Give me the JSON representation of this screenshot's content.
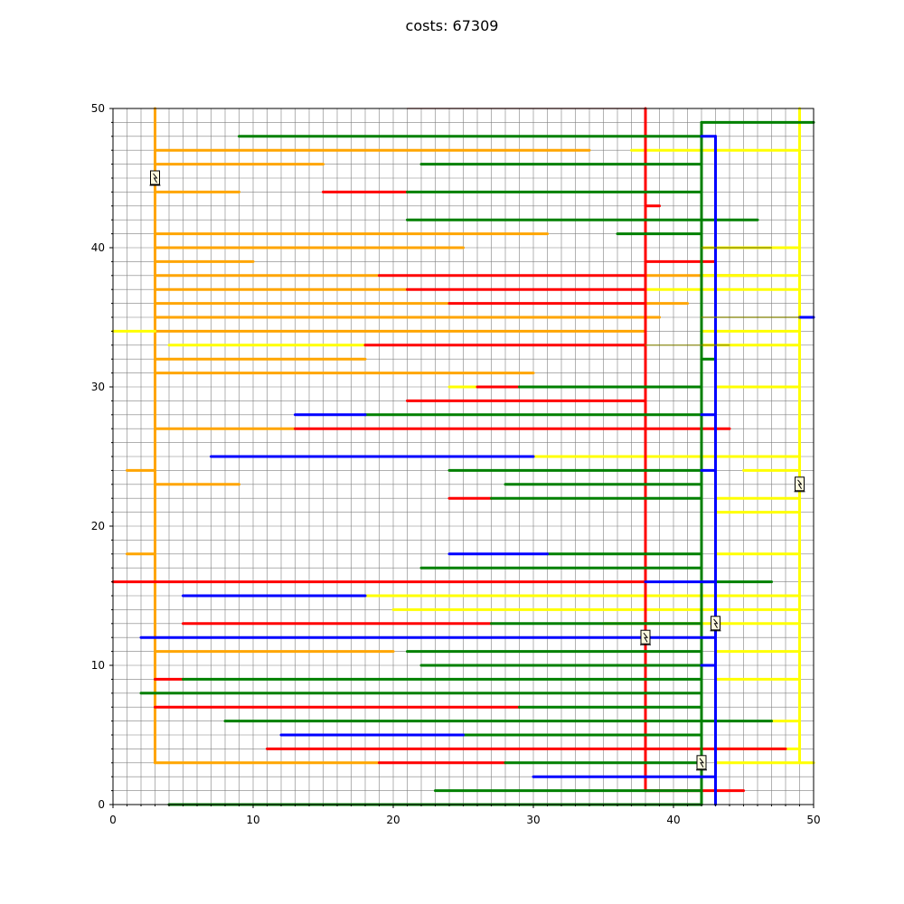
{
  "chart_data": {
    "type": "line",
    "title": "costs: 67309",
    "xlabel": "",
    "ylabel": "",
    "xlim": [
      0,
      50
    ],
    "ylim": [
      0,
      50
    ],
    "xticks": [
      "0",
      "10",
      "20",
      "30",
      "40",
      "50"
    ],
    "yticks": [
      "0",
      "10",
      "20",
      "30",
      "40",
      "50"
    ],
    "grid": "on",
    "grid_step": 1,
    "colors": {
      "orange": "#ffa500",
      "yellow": "#ffff00",
      "red": "#ff0000",
      "green": "#008000",
      "blue": "#0000ff",
      "dark": "#8b0000",
      "olive": "#808000",
      "grid": "#808080"
    },
    "markers": [
      {
        "name": "transformer-icon",
        "x": 3,
        "y": 45
      },
      {
        "name": "transformer-icon",
        "x": 38,
        "y": 12
      },
      {
        "name": "transformer-icon",
        "x": 43,
        "y": 13
      },
      {
        "name": "transformer-icon",
        "x": 42,
        "y": 3
      },
      {
        "name": "transformer-icon",
        "x": 49,
        "y": 23
      }
    ],
    "series": [
      {
        "color": "orange",
        "segments": [
          [
            3,
            3,
            3,
            50
          ],
          [
            3,
            3,
            19,
            3
          ],
          [
            3,
            47,
            34,
            47
          ],
          [
            3,
            46,
            15,
            46
          ],
          [
            3,
            44,
            9,
            44
          ],
          [
            3,
            41,
            31,
            41
          ],
          [
            3,
            40,
            25,
            40
          ],
          [
            3,
            39,
            10,
            39
          ],
          [
            3,
            38,
            19,
            38
          ],
          [
            3,
            37,
            21,
            37
          ],
          [
            3,
            36,
            24,
            36
          ],
          [
            3,
            35,
            38,
            35
          ],
          [
            3,
            34,
            38,
            34
          ],
          [
            3,
            32,
            18,
            32
          ],
          [
            3,
            31,
            30,
            31
          ],
          [
            3,
            27,
            13,
            27
          ],
          [
            3,
            23,
            9,
            23
          ],
          [
            1,
            24,
            3,
            24
          ],
          [
            1,
            18,
            3,
            18
          ],
          [
            3,
            11,
            20,
            11
          ],
          [
            38,
            38,
            46,
            38
          ],
          [
            38,
            36,
            41,
            36
          ],
          [
            38,
            35,
            39,
            35
          ]
        ]
      },
      {
        "color": "yellow",
        "segments": [
          [
            49,
            3,
            49,
            50
          ],
          [
            0,
            34,
            3,
            34
          ],
          [
            4,
            33,
            18,
            33
          ],
          [
            37,
            47,
            49,
            47
          ],
          [
            42,
            40,
            49,
            40
          ],
          [
            42,
            38,
            49,
            38
          ],
          [
            38,
            37,
            49,
            37
          ],
          [
            42,
            34,
            49,
            34
          ],
          [
            42,
            33,
            49,
            33
          ],
          [
            43,
            30,
            49,
            30
          ],
          [
            24,
            30,
            26,
            30
          ],
          [
            30,
            25,
            49,
            25
          ],
          [
            45,
            24,
            49,
            24
          ],
          [
            43,
            22,
            49,
            22
          ],
          [
            43,
            21,
            49,
            21
          ],
          [
            43,
            18,
            49,
            18
          ],
          [
            18,
            15,
            49,
            15
          ],
          [
            20,
            14,
            49,
            14
          ],
          [
            43,
            11,
            49,
            11
          ],
          [
            43,
            9,
            49,
            9
          ],
          [
            47,
            6,
            49,
            6
          ],
          [
            43,
            4,
            49,
            4
          ],
          [
            43,
            3,
            50,
            3
          ],
          [
            35,
            13,
            49,
            13
          ]
        ]
      },
      {
        "color": "red",
        "segments": [
          [
            38,
            1,
            38,
            50
          ],
          [
            15,
            44,
            21,
            44
          ],
          [
            38,
            43,
            39,
            43
          ],
          [
            38,
            39,
            43,
            39
          ],
          [
            19,
            38,
            38,
            38
          ],
          [
            21,
            37,
            38,
            37
          ],
          [
            24,
            36,
            38,
            36
          ],
          [
            18,
            33,
            38,
            33
          ],
          [
            26,
            30,
            29,
            30
          ],
          [
            21,
            29,
            38,
            29
          ],
          [
            13,
            27,
            44,
            27
          ],
          [
            24,
            22,
            27,
            22
          ],
          [
            0,
            16,
            38,
            16
          ],
          [
            5,
            13,
            27,
            13
          ],
          [
            3,
            9,
            5,
            9
          ],
          [
            3,
            7,
            29,
            7
          ],
          [
            11,
            4,
            48,
            4
          ],
          [
            19,
            3,
            28,
            3
          ],
          [
            38,
            1,
            45,
            1
          ]
        ]
      },
      {
        "color": "green",
        "segments": [
          [
            42,
            0,
            42,
            49
          ],
          [
            42,
            49,
            50,
            49
          ],
          [
            9,
            48,
            42,
            48
          ],
          [
            22,
            46,
            42,
            46
          ],
          [
            21,
            44,
            42,
            44
          ],
          [
            21,
            42,
            46,
            42
          ],
          [
            36,
            41,
            42,
            41
          ],
          [
            42,
            32,
            43,
            32
          ],
          [
            29,
            30,
            42,
            30
          ],
          [
            18,
            28,
            42,
            28
          ],
          [
            24,
            24,
            42,
            24
          ],
          [
            28,
            23,
            42,
            23
          ],
          [
            27,
            22,
            42,
            22
          ],
          [
            31,
            18,
            42,
            18
          ],
          [
            22,
            17,
            42,
            17
          ],
          [
            42,
            16,
            47,
            16
          ],
          [
            27,
            13,
            42,
            13
          ],
          [
            21,
            11,
            42,
            11
          ],
          [
            22,
            10,
            42,
            10
          ],
          [
            5,
            9,
            42,
            9
          ],
          [
            2,
            8,
            42,
            8
          ],
          [
            29,
            7,
            42,
            7
          ],
          [
            8,
            6,
            47,
            6
          ],
          [
            25,
            5,
            42,
            5
          ],
          [
            28,
            3,
            42,
            3
          ],
          [
            23,
            1,
            42,
            1
          ],
          [
            4,
            0,
            42,
            0
          ]
        ]
      },
      {
        "color": "blue",
        "segments": [
          [
            43,
            0,
            43,
            48
          ],
          [
            42,
            48,
            43,
            48
          ],
          [
            49,
            35,
            50,
            35
          ],
          [
            13,
            28,
            18,
            28
          ],
          [
            42,
            28,
            43,
            28
          ],
          [
            7,
            25,
            30,
            25
          ],
          [
            42,
            24,
            43,
            24
          ],
          [
            24,
            18,
            31,
            18
          ],
          [
            38,
            16,
            43,
            16
          ],
          [
            5,
            15,
            18,
            15
          ],
          [
            2,
            12,
            43,
            12
          ],
          [
            42,
            10,
            43,
            10
          ],
          [
            12,
            5,
            25,
            5
          ],
          [
            30,
            2,
            43,
            2
          ]
        ]
      },
      {
        "color": "dark",
        "segments": [
          [
            21,
            50,
            38,
            50
          ]
        ]
      },
      {
        "color": "olive",
        "segments": [
          [
            42,
            40,
            47,
            40
          ],
          [
            38,
            33,
            44,
            33
          ],
          [
            42,
            35,
            49,
            35
          ]
        ]
      }
    ]
  }
}
